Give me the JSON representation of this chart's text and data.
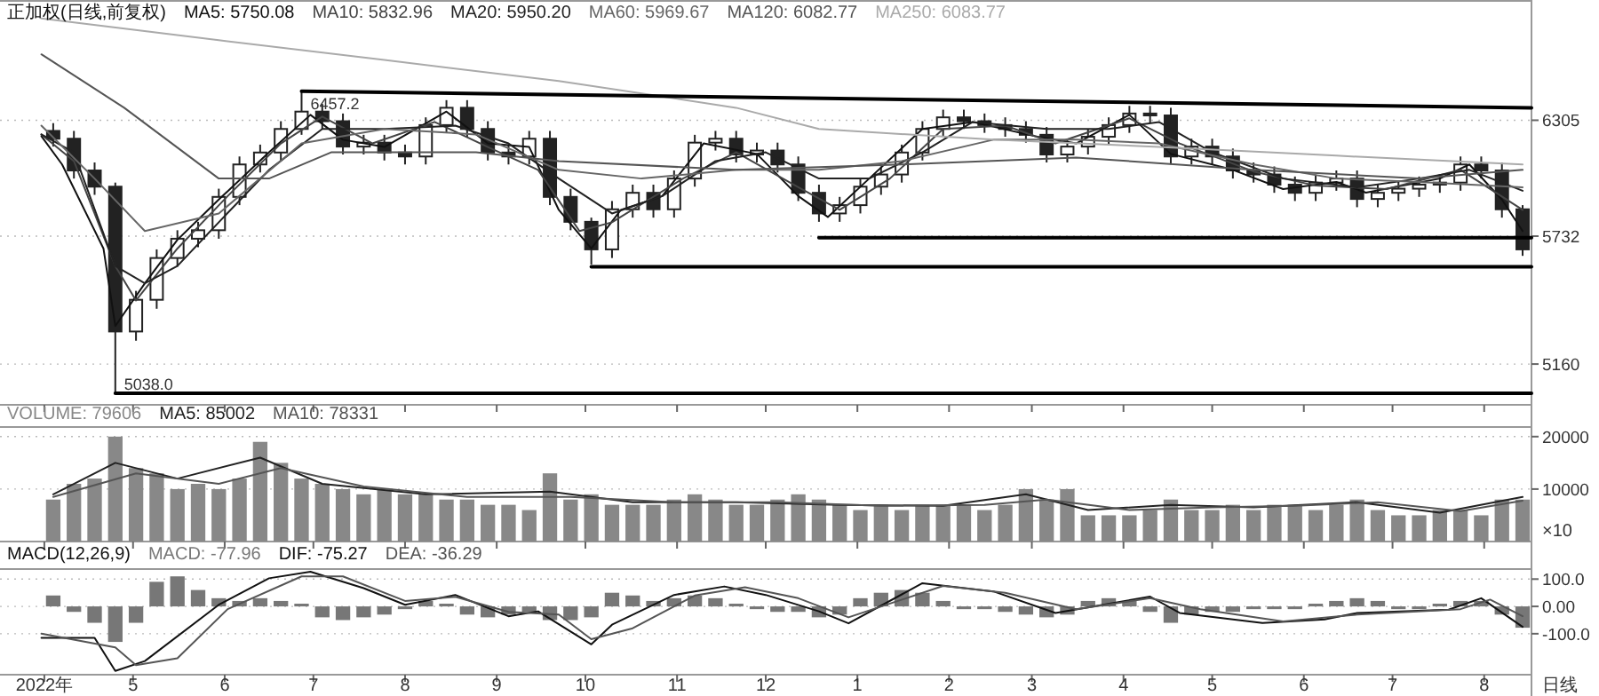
{
  "chart_data": [
    {
      "type": "candlestick",
      "title": "正加权(日线,前复权)",
      "legend": "top left",
      "grid": "y",
      "log": "y",
      "tick_labels": "y",
      "color": "#222222",
      "x": [
        "2022-04-04",
        "2022-04-11",
        "2022-04-18",
        "2022-04-25",
        "2022-05-02",
        "2022-05-09",
        "2022-05-16",
        "2022-05-23",
        "2022-05-30",
        "2022-06-06",
        "2022-06-13",
        "2022-06-20",
        "2022-06-27",
        "2022-07-04",
        "2022-07-11",
        "2022-07-18",
        "2022-07-25",
        "2022-08-01",
        "2022-08-08",
        "2022-08-15",
        "2022-08-22",
        "2022-08-29",
        "2022-09-05",
        "2022-09-12",
        "2022-09-19",
        "2022-09-26",
        "2022-10-03",
        "2022-10-10",
        "2022-10-17",
        "2022-10-24",
        "2022-10-31",
        "2022-11-07",
        "2022-11-14",
        "2022-11-21",
        "2022-11-28",
        "2022-12-05",
        "2022-12-12",
        "2022-12-19",
        "2022-12-26",
        "2023-01-02",
        "2023-01-09",
        "2023-01-16",
        "2023-01-23",
        "2023-01-30",
        "2023-02-06",
        "2023-02-13",
        "2023-02-20",
        "2023-02-27",
        "2023-03-06",
        "2023-03-13",
        "2023-03-20",
        "2023-03-27",
        "2023-04-03",
        "2023-04-10",
        "2023-04-17",
        "2023-04-24",
        "2023-05-01",
        "2023-05-08",
        "2023-05-15",
        "2023-05-22",
        "2023-05-29",
        "2023-06-05",
        "2023-06-12",
        "2023-06-19",
        "2023-06-26",
        "2023-07-03",
        "2023-07-10",
        "2023-07-17",
        "2023-07-24",
        "2023-07-31",
        "2023-08-07",
        "2023-08-14"
      ],
      "xlim": [
        "2022-03-17",
        "2023-08-17"
      ],
      "xticks": [
        {
          "value": "2022-04",
          "label": null
        },
        {
          "value": "2022-05",
          "label": null
        },
        {
          "value": "2022-06",
          "label": null
        },
        {
          "value": "2022-07",
          "label": null
        },
        {
          "value": "2022-08",
          "label": null
        },
        {
          "value": "2022-09",
          "label": null
        },
        {
          "value": "2022-10",
          "label": null
        },
        {
          "value": "2022-11",
          "label": null
        },
        {
          "value": "2022-12",
          "label": null
        },
        {
          "value": "2023-01",
          "label": null
        },
        {
          "value": "2023-02",
          "label": null
        },
        {
          "value": "2023-03",
          "label": null
        },
        {
          "value": "2023-04",
          "label": null
        },
        {
          "value": "2023-05",
          "label": null
        },
        {
          "value": "2023-06",
          "label": null
        },
        {
          "value": "2023-07",
          "label": null
        },
        {
          "value": "2023-08",
          "label": null
        }
      ],
      "ylim": [
        4990,
        6960
      ],
      "yticks": [
        5160,
        5732,
        6305
      ],
      "ohlc": [
        [
          6250,
          6290,
          6170,
          6210
        ],
        [
          6210,
          6250,
          6010,
          6050
        ],
        [
          6050,
          6090,
          5930,
          5970
        ],
        [
          5970,
          5990,
          5038,
          5300
        ],
        [
          5300,
          5480,
          5260,
          5440
        ],
        [
          5440,
          5670,
          5400,
          5630
        ],
        [
          5630,
          5760,
          5590,
          5720
        ],
        [
          5720,
          5800,
          5680,
          5760
        ],
        [
          5760,
          5960,
          5720,
          5920
        ],
        [
          5920,
          6120,
          5880,
          6080
        ],
        [
          6080,
          6180,
          6040,
          6140
        ],
        [
          6140,
          6300,
          6100,
          6260
        ],
        [
          6260,
          6457,
          6230,
          6350
        ],
        [
          6350,
          6390,
          6260,
          6300
        ],
        [
          6300,
          6340,
          6130,
          6170
        ],
        [
          6170,
          6230,
          6130,
          6190
        ],
        [
          6190,
          6230,
          6100,
          6140
        ],
        [
          6140,
          6180,
          6080,
          6120
        ],
        [
          6120,
          6320,
          6080,
          6280
        ],
        [
          6280,
          6410,
          6240,
          6370
        ],
        [
          6370,
          6410,
          6220,
          6260
        ],
        [
          6260,
          6300,
          6100,
          6140
        ],
        [
          6140,
          6180,
          6080,
          6120
        ],
        [
          6120,
          6250,
          6080,
          6210
        ],
        [
          6210,
          6250,
          5880,
          5920
        ],
        [
          5920,
          5960,
          5760,
          5800
        ],
        [
          5800,
          5820,
          5600,
          5670
        ],
        [
          5670,
          5900,
          5630,
          5860
        ],
        [
          5860,
          5980,
          5820,
          5940
        ],
        [
          5940,
          5980,
          5820,
          5860
        ],
        [
          5860,
          6050,
          5820,
          6010
        ],
        [
          6010,
          6230,
          5970,
          6190
        ],
        [
          6190,
          6250,
          6150,
          6210
        ],
        [
          6210,
          6250,
          6090,
          6130
        ],
        [
          6130,
          6190,
          6090,
          6150
        ],
        [
          6150,
          6190,
          6040,
          6080
        ],
        [
          6080,
          6120,
          5900,
          5940
        ],
        [
          5940,
          5980,
          5800,
          5840
        ],
        [
          5840,
          5920,
          5800,
          5880
        ],
        [
          5880,
          6010,
          5840,
          5970
        ],
        [
          5970,
          6070,
          5930,
          6030
        ],
        [
          6030,
          6180,
          5990,
          6140
        ],
        [
          6140,
          6300,
          6100,
          6260
        ],
        [
          6260,
          6360,
          6220,
          6320
        ],
        [
          6320,
          6360,
          6260,
          6300
        ],
        [
          6300,
          6340,
          6240,
          6280
        ],
        [
          6280,
          6320,
          6220,
          6260
        ],
        [
          6260,
          6300,
          6190,
          6230
        ],
        [
          6230,
          6270,
          6090,
          6130
        ],
        [
          6130,
          6210,
          6090,
          6170
        ],
        [
          6170,
          6260,
          6130,
          6220
        ],
        [
          6220,
          6320,
          6180,
          6280
        ],
        [
          6280,
          6380,
          6240,
          6340
        ],
        [
          6340,
          6380,
          6290,
          6330
        ],
        [
          6330,
          6370,
          6080,
          6120
        ],
        [
          6120,
          6210,
          6080,
          6170
        ],
        [
          6170,
          6210,
          6080,
          6120
        ],
        [
          6120,
          6160,
          6010,
          6050
        ],
        [
          6050,
          6090,
          5990,
          6030
        ],
        [
          6030,
          6070,
          5940,
          5980
        ],
        [
          5980,
          6020,
          5900,
          5940
        ],
        [
          5940,
          6030,
          5900,
          5990
        ],
        [
          5990,
          6050,
          5950,
          6010
        ],
        [
          6010,
          6050,
          5870,
          5910
        ],
        [
          5910,
          5980,
          5870,
          5940
        ],
        [
          5940,
          6000,
          5900,
          5960
        ],
        [
          5960,
          6020,
          5920,
          5980
        ],
        [
          5980,
          6030,
          5940,
          5990
        ],
        [
          5990,
          6120,
          5950,
          6080
        ],
        [
          6080,
          6120,
          6010,
          6050
        ],
        [
          6050,
          6090,
          5820,
          5860
        ],
        [
          5860,
          5880,
          5640,
          5670
        ]
      ],
      "series": [
        {
          "type": "line",
          "name": "MA5: 5750.08",
          "color": "#111111",
          "x": [
            "2022-03-31",
            "2022-04-07",
            "2022-04-21",
            "2022-04-25",
            "2022-05-05",
            "2022-05-16",
            "2022-05-30",
            "2022-06-16",
            "2022-06-30",
            "2022-07-11",
            "2022-07-25",
            "2022-08-15",
            "2022-08-29",
            "2022-09-12",
            "2022-09-22",
            "2022-10-03",
            "2022-10-13",
            "2022-10-27",
            "2022-11-10",
            "2022-11-28",
            "2022-12-12",
            "2022-12-22",
            "2023-01-05",
            "2023-01-23",
            "2023-02-09",
            "2023-03-02",
            "2023-03-16",
            "2023-04-03",
            "2023-04-17",
            "2023-05-08",
            "2023-05-25",
            "2023-06-12",
            "2023-06-22",
            "2023-07-17",
            "2023-07-27",
            "2023-08-07",
            "2023-08-14"
          ],
          "values": [
            6223,
            6080,
            5674,
            5324,
            5514,
            5715,
            5907,
            6141,
            6333,
            6205,
            6168,
            6350,
            6186,
            6168,
            5857,
            5674,
            5857,
            5924,
            6186,
            6133,
            5924,
            5823,
            6010,
            6260,
            6296,
            6223,
            6186,
            6333,
            6133,
            6053,
            5958,
            5993,
            5941,
            6010,
            6080,
            5907,
            5756
          ]
        },
        {
          "type": "line",
          "name": "MA10: 5832.96",
          "color": "#444444",
          "x": [
            "2022-03-31",
            "2022-04-11",
            "2022-04-25",
            "2022-05-02",
            "2022-05-16",
            "2022-06-02",
            "2022-06-20",
            "2022-07-04",
            "2022-07-21",
            "2022-08-11",
            "2022-08-29",
            "2022-09-15",
            "2022-09-29",
            "2022-10-10",
            "2022-11-03",
            "2022-11-21",
            "2022-12-12",
            "2022-12-26",
            "2023-01-12",
            "2023-01-30",
            "2023-02-20",
            "2023-03-09",
            "2023-04-03",
            "2023-04-20",
            "2023-05-15",
            "2023-06-05",
            "2023-06-29",
            "2023-07-24",
            "2023-08-14"
          ],
          "values": [
            6232,
            6097,
            5593,
            5437,
            5674,
            5924,
            6186,
            6324,
            6186,
            6296,
            6168,
            6053,
            5756,
            5798,
            6010,
            6141,
            5967,
            5857,
            6010,
            6260,
            6277,
            6186,
            6315,
            6186,
            6045,
            5975,
            5958,
            6053,
            5857
          ]
        },
        {
          "type": "line",
          "name": "MA20: 5950.20",
          "color": "#222222",
          "x": [
            "2022-03-31",
            "2022-04-11",
            "2022-04-25",
            "2022-05-05",
            "2022-05-16",
            "2022-05-30",
            "2022-06-16",
            "2022-07-04",
            "2022-07-25",
            "2022-08-18",
            "2022-09-05",
            "2022-09-22",
            "2022-10-10",
            "2022-10-27",
            "2022-11-14",
            "2022-12-01",
            "2022-12-19",
            "2023-01-05",
            "2023-01-23",
            "2023-02-09",
            "2023-03-06",
            "2023-03-27",
            "2023-04-13",
            "2023-05-01",
            "2023-05-25",
            "2023-06-19",
            "2023-07-10",
            "2023-07-27",
            "2023-08-14"
          ],
          "values": [
            6232,
            6141,
            5593,
            5514,
            5593,
            5798,
            6053,
            6260,
            6260,
            6277,
            6186,
            6010,
            5840,
            5924,
            6097,
            6141,
            6010,
            6010,
            6141,
            6296,
            6260,
            6260,
            6296,
            6141,
            6010,
            5967,
            6010,
            6053,
            5950
          ]
        },
        {
          "type": "line",
          "name": "MA60: 5969.67",
          "color": "#666666",
          "x": [
            "2022-03-31",
            "2022-04-18",
            "2022-05-05",
            "2022-05-30",
            "2022-06-27",
            "2022-07-25",
            "2022-08-25",
            "2022-09-22",
            "2022-10-20",
            "2022-11-21",
            "2022-12-19",
            "2023-01-16",
            "2023-02-16",
            "2023-03-16",
            "2023-04-13",
            "2023-05-15",
            "2023-06-12",
            "2023-07-10",
            "2023-08-14"
          ],
          "values": [
            6277,
            6010,
            5756,
            5840,
            6186,
            6260,
            6232,
            6053,
            6010,
            6053,
            6053,
            6097,
            6205,
            6205,
            6186,
            6080,
            6010,
            5993,
            5967
          ]
        },
        {
          "type": "line",
          "name": "MA120: 6082.77",
          "color": "#555555",
          "x": [
            "2022-03-31",
            "2022-04-28",
            "2022-05-30",
            "2022-06-16",
            "2022-07-07",
            "2022-08-25",
            "2022-09-22",
            "2022-11-21",
            "2023-01-16",
            "2023-03-16",
            "2023-05-15",
            "2023-07-10",
            "2023-08-14"
          ],
          "values": [
            6656,
            6370,
            6010,
            6010,
            6141,
            6141,
            6097,
            6053,
            6080,
            6115,
            6053,
            6010,
            6053
          ]
        },
        {
          "type": "line",
          "name": "MA250: 6083.77",
          "color": "#aaaaaa",
          "x": [
            "2022-03-31",
            "2022-05-30",
            "2022-07-25",
            "2022-09-22",
            "2022-11-21",
            "2022-12-19",
            "2023-02-16",
            "2023-04-13",
            "2023-06-12",
            "2023-08-14"
          ],
          "values": [
            6855,
            6734,
            6625,
            6512,
            6370,
            6260,
            6205,
            6168,
            6124,
            6080
          ]
        },
        {
          "type": "line",
          "color": "#000000",
          "x": [
            "2022-06-27",
            "2023-08-17"
          ],
          "values": [
            6457,
            6370
          ]
        },
        {
          "type": "line",
          "color": "#000000",
          "x": [
            "2022-10-03",
            "2023-08-17"
          ],
          "values": [
            5590,
            5590
          ]
        },
        {
          "type": "line",
          "color": "#000000",
          "x": [
            "2022-12-19",
            "2023-08-17"
          ],
          "values": [
            5725,
            5725
          ]
        },
        {
          "type": "line",
          "color": "#000000",
          "x": [
            "2022-04-25",
            "2023-08-17"
          ],
          "values": [
            5038,
            5038
          ]
        }
      ],
      "annotations": [
        {
          "text": "6457.2",
          "x": "2022-06-27",
          "y": 6457
        },
        {
          "text": "5038.0",
          "x": "2022-04-25",
          "y": 5038
        }
      ]
    },
    {
      "type": "bar",
      "legend": "top left",
      "grid": "y",
      "tick_labels": "y",
      "x": [
        "2022-04-04",
        "2022-04-11",
        "2022-04-18",
        "2022-04-25",
        "2022-05-02",
        "2022-05-09",
        "2022-05-16",
        "2022-05-23",
        "2022-05-30",
        "2022-06-06",
        "2022-06-13",
        "2022-06-20",
        "2022-06-27",
        "2022-07-04",
        "2022-07-11",
        "2022-07-18",
        "2022-07-25",
        "2022-08-01",
        "2022-08-08",
        "2022-08-15",
        "2022-08-22",
        "2022-08-29",
        "2022-09-05",
        "2022-09-12",
        "2022-09-19",
        "2022-09-26",
        "2022-10-03",
        "2022-10-10",
        "2022-10-17",
        "2022-10-24",
        "2022-10-31",
        "2022-11-07",
        "2022-11-14",
        "2022-11-21",
        "2022-11-28",
        "2022-12-05",
        "2022-12-12",
        "2022-12-19",
        "2022-12-26",
        "2023-01-02",
        "2023-01-09",
        "2023-01-16",
        "2023-01-23",
        "2023-01-30",
        "2023-02-06",
        "2023-02-13",
        "2023-02-20",
        "2023-02-27",
        "2023-03-06",
        "2023-03-13",
        "2023-03-20",
        "2023-03-27",
        "2023-04-03",
        "2023-04-10",
        "2023-04-17",
        "2023-04-24",
        "2023-05-01",
        "2023-05-08",
        "2023-05-15",
        "2023-05-22",
        "2023-05-29",
        "2023-06-05",
        "2023-06-12",
        "2023-06-19",
        "2023-06-26",
        "2023-07-03",
        "2023-07-10",
        "2023-07-17",
        "2023-07-24",
        "2023-07-31",
        "2023-08-07",
        "2023-08-14"
      ],
      "xlim": [
        "2022-03-17",
        "2023-08-17"
      ],
      "xticks": [
        {
          "value": "2022-04",
          "label": null
        },
        {
          "value": "2022-05",
          "label": null
        },
        {
          "value": "2022-06",
          "label": null
        },
        {
          "value": "2022-07",
          "label": null
        },
        {
          "value": "2022-08",
          "label": null
        },
        {
          "value": "2022-09",
          "label": null
        },
        {
          "value": "2022-10",
          "label": null
        },
        {
          "value": "2022-11",
          "label": null
        },
        {
          "value": "2022-12",
          "label": null
        },
        {
          "value": "2023-01",
          "label": null
        },
        {
          "value": "2023-02",
          "label": null
        },
        {
          "value": "2023-03",
          "label": null
        },
        {
          "value": "2023-04",
          "label": null
        },
        {
          "value": "2023-05",
          "label": null
        },
        {
          "value": "2023-06",
          "label": null
        },
        {
          "value": "2023-07",
          "label": null
        },
        {
          "value": "2023-08",
          "label": null
        }
      ],
      "ylim": [
        0,
        22000
      ],
      "yticks": [
        10000,
        20000
      ],
      "ylabel": "×10",
      "series": [
        {
          "name": "VOLUME: 79606",
          "color": "#888888",
          "values": [
            8000,
            11000,
            12000,
            20000,
            14000,
            13000,
            10000,
            11000,
            10000,
            12000,
            19000,
            15000,
            12000,
            11000,
            10000,
            9000,
            10000,
            9000,
            9000,
            8000,
            8000,
            7000,
            7000,
            6000,
            13000,
            8000,
            9000,
            7000,
            7000,
            7000,
            8000,
            9000,
            8000,
            7000,
            7000,
            8000,
            9000,
            8000,
            7000,
            6000,
            7000,
            6000,
            7000,
            7000,
            7000,
            6000,
            7000,
            10000,
            8000,
            10000,
            5000,
            5000,
            5000,
            6000,
            8000,
            6000,
            6000,
            7000,
            6000,
            7000,
            7000,
            6000,
            7000,
            8000,
            6000,
            5000,
            5000,
            6000,
            6000,
            5000,
            8000,
            8000
          ]
        },
        {
          "type": "line",
          "name": "MA5: 85002",
          "color": "#222222",
          "x": [
            "2022-04-04",
            "2022-04-25",
            "2022-05-16",
            "2022-06-13",
            "2022-07-04",
            "2022-08-08",
            "2022-09-19",
            "2022-10-17",
            "2022-11-21",
            "2022-12-26",
            "2023-01-30",
            "2023-02-27",
            "2023-03-20",
            "2023-04-17",
            "2023-05-15",
            "2023-06-19",
            "2023-07-17",
            "2023-08-14"
          ],
          "values": [
            9000,
            15000,
            12000,
            16000,
            11000,
            9000,
            9500,
            7500,
            7500,
            7000,
            6800,
            9000,
            6000,
            7000,
            6500,
            7500,
            5500,
            8500
          ]
        },
        {
          "type": "line",
          "name": "MA10: 78331",
          "color": "#555555",
          "x": [
            "2022-04-04",
            "2022-05-02",
            "2022-05-30",
            "2022-06-20",
            "2022-07-18",
            "2022-08-22",
            "2022-09-26",
            "2022-10-31",
            "2022-12-05",
            "2023-01-09",
            "2023-02-13",
            "2023-03-06",
            "2023-04-03",
            "2023-05-01",
            "2023-05-29",
            "2023-06-26",
            "2023-07-24",
            "2023-08-14"
          ],
          "values": [
            8500,
            13000,
            11000,
            14000,
            10500,
            8500,
            8500,
            7500,
            7500,
            6800,
            7000,
            8000,
            6000,
            6500,
            6800,
            7500,
            5800,
            7800
          ]
        }
      ]
    },
    {
      "type": "bar",
      "title": "MACD(12,26,9)",
      "legend": "top left",
      "grid": "y",
      "x": [
        "2022-04-04",
        "2022-04-11",
        "2022-04-18",
        "2022-04-25",
        "2022-05-02",
        "2022-05-09",
        "2022-05-16",
        "2022-05-23",
        "2022-05-30",
        "2022-06-06",
        "2022-06-13",
        "2022-06-20",
        "2022-06-27",
        "2022-07-04",
        "2022-07-11",
        "2022-07-18",
        "2022-07-25",
        "2022-08-01",
        "2022-08-08",
        "2022-08-15",
        "2022-08-22",
        "2022-08-29",
        "2022-09-05",
        "2022-09-12",
        "2022-09-19",
        "2022-09-26",
        "2022-10-03",
        "2022-10-10",
        "2022-10-17",
        "2022-10-24",
        "2022-10-31",
        "2022-11-07",
        "2022-11-14",
        "2022-11-21",
        "2022-11-28",
        "2022-12-05",
        "2022-12-12",
        "2022-12-19",
        "2022-12-26",
        "2023-01-02",
        "2023-01-09",
        "2023-01-16",
        "2023-01-23",
        "2023-01-30",
        "2023-02-06",
        "2023-02-13",
        "2023-02-20",
        "2023-02-27",
        "2023-03-06",
        "2023-03-13",
        "2023-03-20",
        "2023-03-27",
        "2023-04-03",
        "2023-04-10",
        "2023-04-17",
        "2023-04-24",
        "2023-05-01",
        "2023-05-08",
        "2023-05-15",
        "2023-05-22",
        "2023-05-29",
        "2023-06-05",
        "2023-06-12",
        "2023-06-19",
        "2023-06-26",
        "2023-07-03",
        "2023-07-10",
        "2023-07-17",
        "2023-07-24",
        "2023-07-31",
        "2023-08-07",
        "2023-08-14"
      ],
      "xlim": [
        "2022-03-17",
        "2023-08-17"
      ],
      "xticks": [
        {
          "value": "2022-04",
          "label": "2022年"
        },
        {
          "value": "2022-05",
          "label": "5"
        },
        {
          "value": "2022-06",
          "label": "6"
        },
        {
          "value": "2022-07",
          "label": "7"
        },
        {
          "value": "2022-08",
          "label": "8"
        },
        {
          "value": "2022-09",
          "label": "9"
        },
        {
          "value": "2022-10",
          "label": "10"
        },
        {
          "value": "2022-11",
          "label": "11"
        },
        {
          "value": "2022-12",
          "label": "12"
        },
        {
          "value": "2023-01",
          "label": "1"
        },
        {
          "value": "2023-02",
          "label": "2"
        },
        {
          "value": "2023-03",
          "label": "3"
        },
        {
          "value": "2023-04",
          "label": "4"
        },
        {
          "value": "2023-05",
          "label": "5"
        },
        {
          "value": "2023-06",
          "label": "6"
        },
        {
          "value": "2023-07",
          "label": "7"
        },
        {
          "value": "2023-08",
          "label": "8"
        }
      ],
      "ylim": [
        -250,
        140
      ],
      "yticks": [
        {
          "value": -100,
          "label": "-100.0"
        },
        {
          "value": 0,
          "label": "0.00"
        },
        {
          "value": 100,
          "label": "100.0"
        }
      ],
      "series": [
        {
          "name": "MACD: -77.96",
          "color": "#777777",
          "values": [
            40,
            -20,
            -60,
            -130,
            -60,
            90,
            110,
            60,
            30,
            20,
            30,
            20,
            10,
            -40,
            -50,
            -40,
            -30,
            -10,
            20,
            10,
            -30,
            -40,
            -30,
            -20,
            -50,
            -50,
            -40,
            50,
            40,
            20,
            30,
            40,
            30,
            10,
            -10,
            -20,
            -20,
            -40,
            -30,
            30,
            50,
            60,
            50,
            20,
            -10,
            -10,
            -20,
            -30,
            -40,
            -30,
            20,
            30,
            20,
            -20,
            -60,
            -30,
            -20,
            -20,
            -10,
            -10,
            -10,
            10,
            20,
            30,
            20,
            -10,
            -10,
            10,
            20,
            20,
            -30,
            -78
          ]
        },
        {
          "type": "line",
          "name": "DIF: -75.27",
          "color": "#111111",
          "x": [
            "2022-03-31",
            "2022-04-18",
            "2022-04-25",
            "2022-05-05",
            "2022-05-30",
            "2022-06-16",
            "2022-06-30",
            "2022-07-18",
            "2022-08-01",
            "2022-08-18",
            "2022-09-05",
            "2022-09-15",
            "2022-10-03",
            "2022-10-10",
            "2022-10-31",
            "2022-11-17",
            "2022-12-01",
            "2022-12-19",
            "2022-12-29",
            "2023-01-23",
            "2023-02-16",
            "2023-03-09",
            "2023-04-10",
            "2023-04-20",
            "2023-05-18",
            "2023-06-08",
            "2023-06-19",
            "2023-07-20",
            "2023-07-31",
            "2023-08-14"
          ],
          "values": [
            -115,
            -115,
            -236,
            -200,
            6,
            103,
            127,
            67,
            6,
            42,
            -36,
            -18,
            -139,
            -67,
            42,
            73,
            42,
            -18,
            -62,
            85,
            55,
            -24,
            36,
            -24,
            -61,
            -48,
            -24,
            -12,
            30,
            -75
          ]
        },
        {
          "type": "line",
          "name": "DEA: -36.29",
          "color": "#555555",
          "x": [
            "2022-03-31",
            "2022-04-25",
            "2022-05-02",
            "2022-05-16",
            "2022-06-02",
            "2022-06-27",
            "2022-07-11",
            "2022-08-01",
            "2022-08-18",
            "2022-09-05",
            "2022-09-22",
            "2022-10-03",
            "2022-10-17",
            "2022-11-07",
            "2022-11-24",
            "2022-12-12",
            "2022-12-29",
            "2023-01-30",
            "2023-02-20",
            "2023-03-16",
            "2023-04-10",
            "2023-04-27",
            "2023-05-25",
            "2023-06-19",
            "2023-07-24",
            "2023-08-03",
            "2023-08-14"
          ],
          "values": [
            -100,
            -150,
            -215,
            -190,
            -10,
            110,
            110,
            20,
            35,
            -20,
            -30,
            -120,
            -80,
            40,
            70,
            30,
            -40,
            75,
            50,
            -10,
            30,
            -10,
            -55,
            -30,
            -10,
            25,
            -36
          ]
        }
      ],
      "annotations": [
        "日线"
      ]
    }
  ]
}
